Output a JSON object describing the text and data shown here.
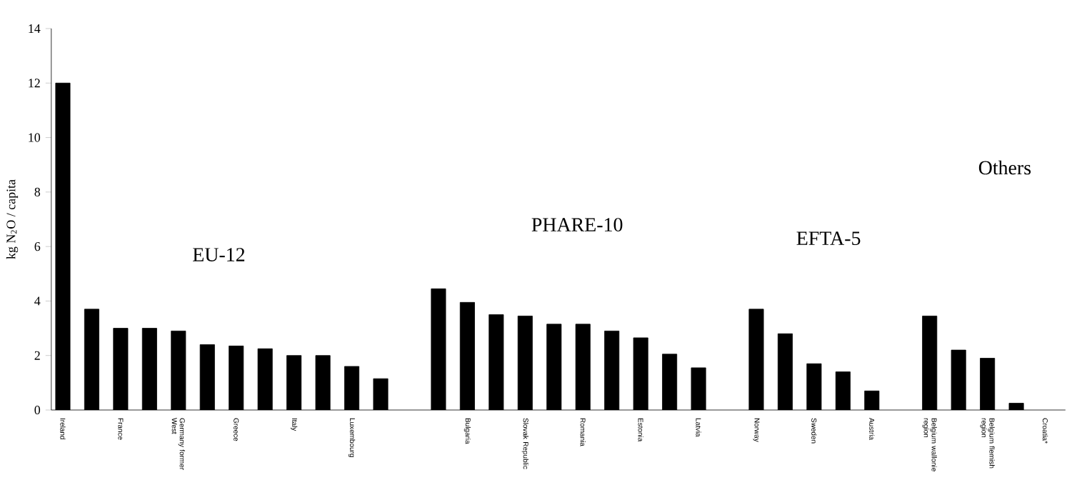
{
  "chart_data": {
    "type": "bar",
    "ylabel": "kg N$_{2}$O / capita",
    "categories": [
      "Ireland",
      null,
      "France",
      null,
      "Germany former West",
      null,
      "Greece",
      null,
      "Italy",
      null,
      "Luxembourg",
      null,
      null,
      null,
      "Bulgaria",
      null,
      "Slovak Republic",
      null,
      "Romania",
      null,
      "Estonia",
      null,
      "Latvia",
      null,
      "Norway",
      null,
      "Sweden",
      null,
      "Austria",
      null,
      "Belgium wallonie region",
      null,
      "Belgium flemish region",
      null,
      "Croatia*"
    ],
    "values": [
      12.0,
      3.7,
      3.0,
      3.0,
      2.9,
      2.4,
      2.35,
      2.25,
      2.0,
      2.0,
      1.6,
      1.15,
      null,
      4.45,
      3.95,
      3.5,
      3.45,
      3.15,
      3.15,
      2.9,
      2.65,
      2.05,
      1.55,
      null,
      3.7,
      2.8,
      1.7,
      1.4,
      0.7,
      null,
      3.45,
      2.2,
      1.9,
      0.25,
      null
    ],
    "color": "#000000",
    "ylim": [
      0,
      14
    ],
    "yticks": [
      0,
      2,
      4,
      6,
      8,
      10,
      12,
      14
    ],
    "annotations": [
      "EU-12",
      "PHARE-10",
      "EFTA-5",
      "Others"
    ]
  }
}
